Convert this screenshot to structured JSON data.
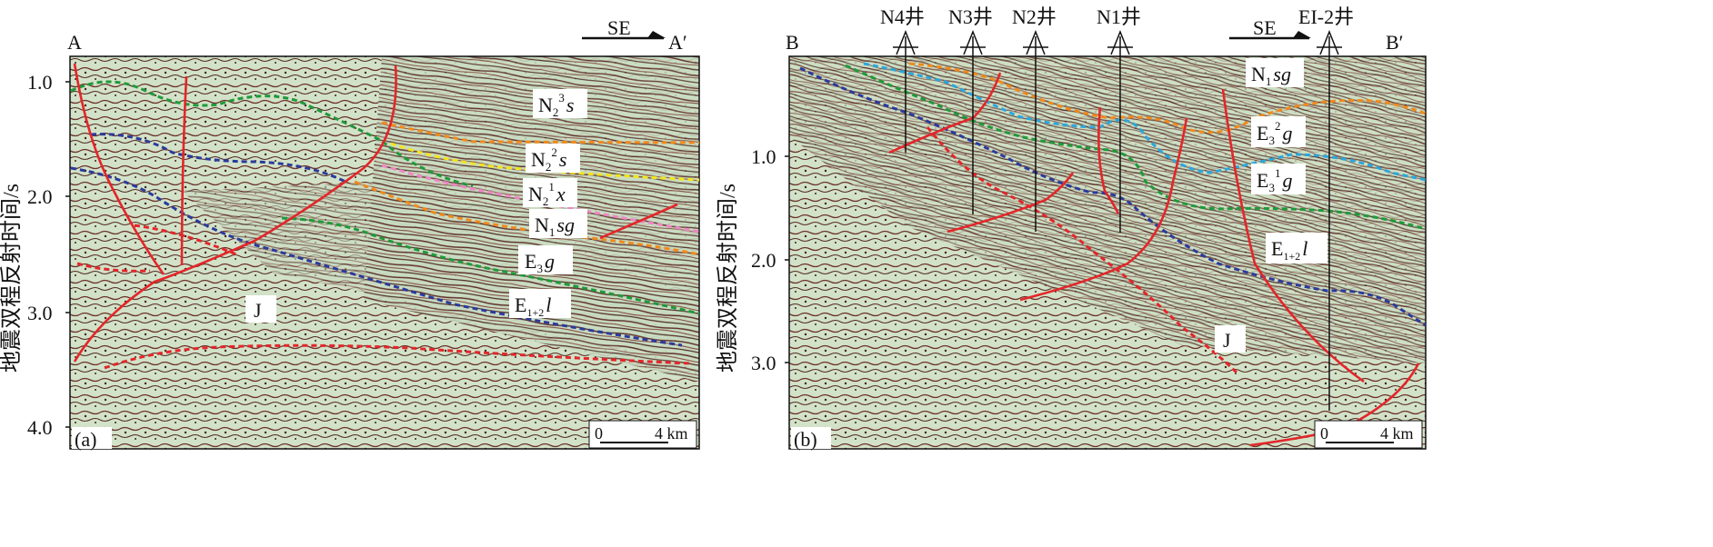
{
  "panels": [
    {
      "id": "a",
      "corner_label": "(a)",
      "start_label": "A",
      "end_label": "A′",
      "direction": "SE",
      "scale_zero": "0",
      "scale_label": "4 km",
      "y_ticks": [
        "1.0",
        "2.0",
        "3.0",
        "4.0"
      ],
      "formations": [
        {
          "base": "N",
          "sub": "2",
          "sup": "3",
          "italic": "s"
        },
        {
          "base": "N",
          "sub": "2",
          "sup": "2",
          "italic": "s"
        },
        {
          "base": "N",
          "sub": "2",
          "sup": "1",
          "italic": "x"
        },
        {
          "base": "N",
          "sub": "1",
          "sup": "",
          "italic": "sg"
        },
        {
          "base": "E",
          "sub": "3",
          "sup": "",
          "italic": "g"
        },
        {
          "base": "E",
          "sub": "1+2",
          "sup": "",
          "italic": "l"
        },
        {
          "base": "J",
          "sub": "",
          "sup": "",
          "italic": ""
        }
      ]
    },
    {
      "id": "b",
      "corner_label": "(b)",
      "start_label": "B",
      "end_label": "B′",
      "direction": "SE",
      "scale_zero": "0",
      "scale_label": "4 km",
      "y_ticks": [
        "1.0",
        "2.0",
        "3.0"
      ],
      "wells": [
        "N4井",
        "N3井",
        "N2井",
        "N1井",
        "EI-2井"
      ],
      "formations": [
        {
          "base": "N",
          "sub": "1",
          "sup": "",
          "italic": "sg"
        },
        {
          "base": "E",
          "sub": "3",
          "sup": "2",
          "italic": "g"
        },
        {
          "base": "E",
          "sub": "3",
          "sup": "1",
          "italic": "g"
        },
        {
          "base": "E",
          "sub": "1+2",
          "sup": "",
          "italic": "l"
        },
        {
          "base": "J",
          "sub": "",
          "sup": "",
          "italic": ""
        }
      ]
    }
  ],
  "y_axis_label": "地震双程反射时间/s",
  "colors": {
    "fault": "#e3262a",
    "horizon_green": "#1f9a3a",
    "horizon_blue": "#2b3a9c",
    "horizon_orange": "#f08a1c",
    "horizon_yellow": "#f2e51e",
    "horizon_pink": "#ee86c4",
    "horizon_cyan": "#2aa7dc",
    "horizon_red": "#e3262a",
    "seismic_bg": "#c8dcc0"
  }
}
